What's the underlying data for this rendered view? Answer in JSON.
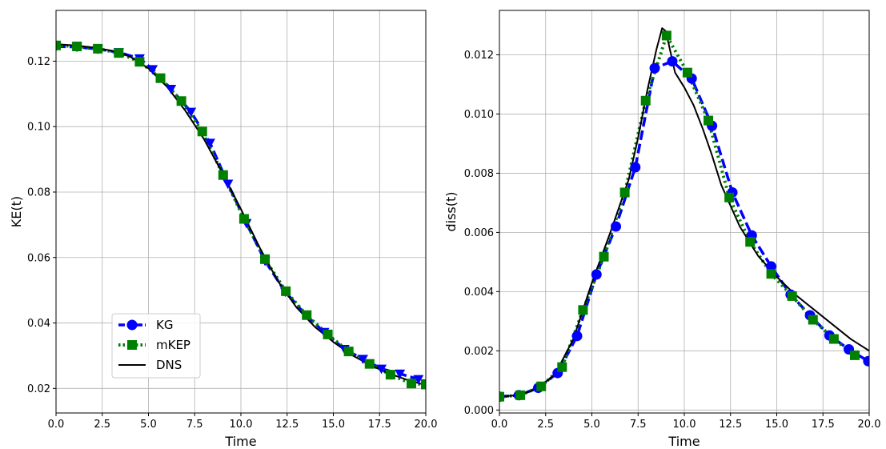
{
  "chart_data": [
    {
      "type": "line",
      "xlabel": "Time",
      "ylabel": "KE(t)",
      "xlim": [
        0,
        20
      ],
      "ylim": [
        0.0125,
        0.1355
      ],
      "xticks": [
        0,
        2.5,
        5,
        7.5,
        10,
        12.5,
        15,
        17.5,
        20
      ],
      "xtick_labels": [
        "0.0",
        "2.5",
        "5.0",
        "7.5",
        "10.0",
        "12.5",
        "15.0",
        "17.5",
        "20.0"
      ],
      "yticks": [
        0.02,
        0.04,
        0.06,
        0.08,
        0.1,
        0.12
      ],
      "ytick_labels": [
        "0.02",
        "0.04",
        "0.06",
        "0.08",
        "0.10",
        "0.12"
      ],
      "grid": true,
      "legend": {
        "position": "lower-left"
      },
      "series": [
        {
          "name": "KG",
          "color": "#0000ff",
          "linestyle": "dashed",
          "marker": "triangle-down",
          "x": [
            0,
            1.13,
            2.26,
            3.39,
            4.52,
            5.22,
            6.22,
            7.3,
            8.33,
            9.3,
            10.3,
            11.3,
            12.4,
            13.5,
            14.5,
            15.6,
            16.6,
            17.6,
            18.6,
            19.6,
            20
          ],
          "y": [
            0.1245,
            0.1243,
            0.1237,
            0.1227,
            0.1208,
            0.1175,
            0.1115,
            0.1045,
            0.095,
            0.0825,
            0.0705,
            0.059,
            0.0495,
            0.0425,
            0.0372,
            0.032,
            0.029,
            0.026,
            0.0245,
            0.0228,
            0.0215
          ]
        },
        {
          "name": "mKEP",
          "color": "#008000",
          "linestyle": "dotted",
          "marker": "square",
          "x": [
            0,
            1.13,
            2.26,
            3.39,
            4.52,
            5.65,
            6.78,
            7.91,
            9.04,
            10.17,
            11.3,
            12.43,
            13.56,
            14.7,
            15.83,
            16.96,
            18.09,
            19.22,
            20
          ],
          "y": [
            0.1248,
            0.1245,
            0.1238,
            0.1225,
            0.1198,
            0.1148,
            0.1078,
            0.0985,
            0.0852,
            0.0718,
            0.0595,
            0.0497,
            0.0424,
            0.0365,
            0.0313,
            0.0275,
            0.0242,
            0.0215,
            0.0212
          ]
        },
        {
          "name": "DNS",
          "color": "#000000",
          "linestyle": "solid",
          "marker": "none",
          "x": [
            0,
            1,
            2,
            3,
            4,
            5,
            6,
            7,
            8,
            9,
            10,
            11,
            12,
            13,
            14,
            15,
            16,
            17,
            18,
            19,
            20
          ],
          "y": [
            0.1252,
            0.1248,
            0.1242,
            0.1232,
            0.1214,
            0.1178,
            0.1122,
            0.1048,
            0.0962,
            0.0858,
            0.0748,
            0.0632,
            0.0528,
            0.0448,
            0.0388,
            0.0342,
            0.0302,
            0.0271,
            0.0246,
            0.0226,
            0.021
          ]
        }
      ]
    },
    {
      "type": "line",
      "xlabel": "Time",
      "ylabel": "diss(t)",
      "xlim": [
        0,
        20
      ],
      "ylim": [
        -0.0001,
        0.0135
      ],
      "xticks": [
        0,
        2.5,
        5,
        7.5,
        10,
        12.5,
        15,
        17.5,
        20
      ],
      "xtick_labels": [
        "0.0",
        "2.5",
        "5.0",
        "7.5",
        "10.0",
        "12.5",
        "15.0",
        "17.5",
        "20.0"
      ],
      "yticks": [
        0.0,
        0.002,
        0.004,
        0.006,
        0.008,
        0.01,
        0.012
      ],
      "ytick_labels": [
        "0.000",
        "0.002",
        "0.004",
        "0.006",
        "0.008",
        "0.010",
        "0.012"
      ],
      "grid": true,
      "series": [
        {
          "name": "KG",
          "color": "#0000ff",
          "linestyle": "dashed",
          "marker": "circle",
          "x": [
            0,
            1.05,
            2.1,
            3.15,
            4.2,
            5.25,
            6.3,
            7.35,
            8.4,
            9.35,
            10.4,
            11.5,
            12.6,
            13.65,
            14.7,
            15.75,
            16.8,
            17.85,
            18.9,
            19.95
          ],
          "y": [
            0.00045,
            0.0005,
            0.00075,
            0.00125,
            0.0025,
            0.00458,
            0.0062,
            0.0082,
            0.01155,
            0.01178,
            0.0112,
            0.0096,
            0.00735,
            0.0059,
            0.00485,
            0.0039,
            0.0032,
            0.00252,
            0.00205,
            0.00165
          ]
        },
        {
          "name": "mKEP",
          "color": "#008000",
          "linestyle": "dotted",
          "marker": "square",
          "x": [
            0,
            1.13,
            2.26,
            3.39,
            4.52,
            5.65,
            6.78,
            7.91,
            9.04,
            10.17,
            11.3,
            12.43,
            13.56,
            14.7,
            15.83,
            16.96,
            18.09,
            19.22
          ],
          "y": [
            0.00045,
            0.0005,
            0.0008,
            0.00145,
            0.00338,
            0.00518,
            0.00735,
            0.01045,
            0.01265,
            0.0114,
            0.00978,
            0.00718,
            0.00568,
            0.0046,
            0.00385,
            0.00305,
            0.0024,
            0.00185
          ]
        },
        {
          "name": "DNS",
          "color": "#000000",
          "linestyle": "solid",
          "marker": "none",
          "x": [
            0,
            1,
            2,
            3,
            4,
            5,
            6,
            7,
            7.5,
            8,
            8.5,
            8.8,
            9,
            9.5,
            10,
            10.5,
            11,
            11.5,
            12,
            12.5,
            13,
            14,
            15,
            16,
            17,
            18,
            19,
            20
          ],
          "y": [
            0.00045,
            0.0005,
            0.0007,
            0.0012,
            0.0024,
            0.0043,
            0.006,
            0.0078,
            0.0092,
            0.0108,
            0.0122,
            0.0129,
            0.0128,
            0.0114,
            0.0109,
            0.0103,
            0.0095,
            0.0086,
            0.0076,
            0.0069,
            0.0062,
            0.0052,
            0.0045,
            0.0039,
            0.0034,
            0.0029,
            0.0024,
            0.002
          ]
        }
      ]
    }
  ]
}
